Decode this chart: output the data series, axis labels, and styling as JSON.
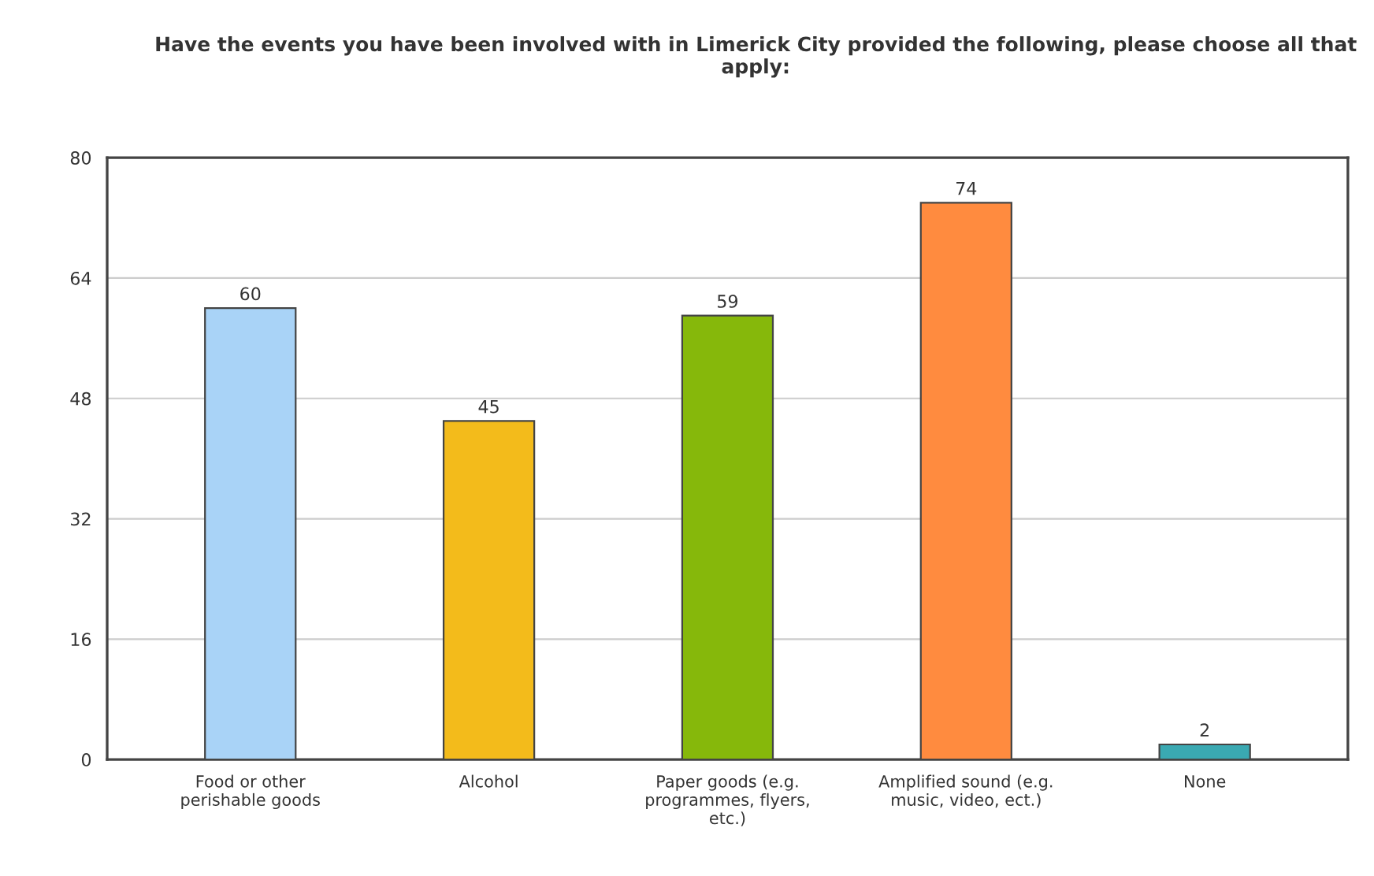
{
  "chart_data": {
    "type": "bar",
    "title": "Have the events you have been involved with in Limerick City provided the following, please choose all that apply:",
    "categories": [
      "Food or other\nperishable goods",
      "Alcohol",
      "Paper goods (e.g.\nprogrammes, flyers,\netc.)",
      "Amplified sound (e.g.\nmusic, video, ect.)",
      "None"
    ],
    "values": [
      60,
      45,
      59,
      74,
      2
    ],
    "colors": [
      "#a9d3f7",
      "#f3bb1b",
      "#86b80b",
      "#ff8b3f",
      "#3aa9b2"
    ],
    "ylim": [
      0,
      80
    ],
    "yticks": [
      0,
      16,
      32,
      48,
      64,
      80
    ],
    "grid": "y",
    "data_labels": true,
    "legend": false
  }
}
